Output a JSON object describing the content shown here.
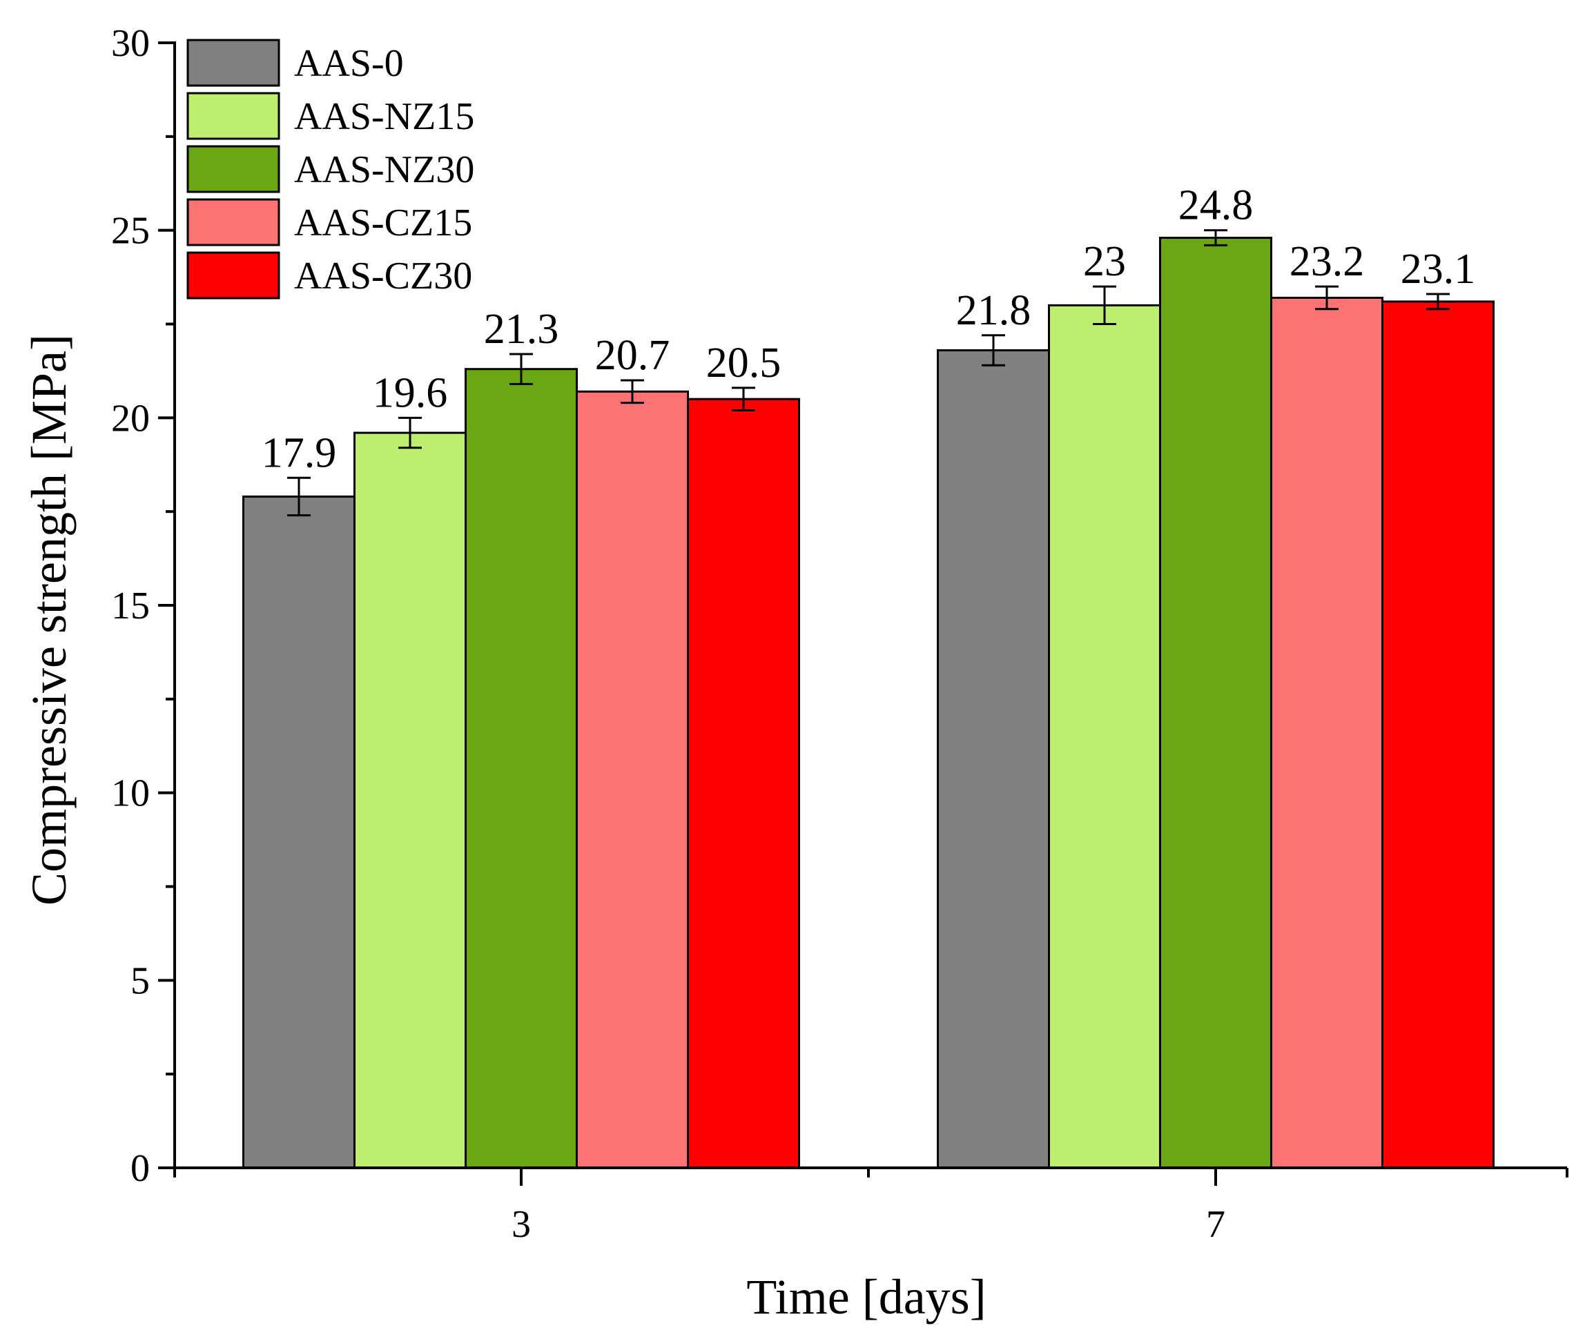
{
  "chart_data": {
    "type": "bar",
    "title": "",
    "xlabel": "Time [days]",
    "ylabel": "Compressive strength [MPa]",
    "categories": [
      "3",
      "7"
    ],
    "ylim": [
      0,
      30
    ],
    "yticks": [
      "0",
      "5",
      "10",
      "15",
      "20",
      "25",
      "30"
    ],
    "grid": false,
    "legend_position": "top-left",
    "series": [
      {
        "name": "AAS-0",
        "color": "#808080",
        "values": [
          17.9,
          21.8
        ],
        "errors": [
          0.5,
          0.4
        ],
        "labels": [
          "17.9",
          "21.8"
        ]
      },
      {
        "name": "AAS-NZ15",
        "color": "#BDEE6E",
        "values": [
          19.6,
          23.0
        ],
        "errors": [
          0.4,
          0.5
        ],
        "labels": [
          "19.6",
          "23"
        ]
      },
      {
        "name": "AAS-NZ30",
        "color": "#6AA713",
        "values": [
          21.3,
          24.8
        ],
        "errors": [
          0.4,
          0.2
        ],
        "labels": [
          "21.3",
          "24.8"
        ]
      },
      {
        "name": "AAS-CZ15",
        "color": "#FD7272",
        "values": [
          20.7,
          23.2
        ],
        "errors": [
          0.3,
          0.3
        ],
        "labels": [
          "20.7",
          "23.2"
        ]
      },
      {
        "name": "AAS-CZ30",
        "color": "#FF0000",
        "values": [
          20.5,
          23.1
        ],
        "errors": [
          0.3,
          0.2
        ],
        "labels": [
          "20.5",
          "23.1"
        ]
      }
    ]
  }
}
